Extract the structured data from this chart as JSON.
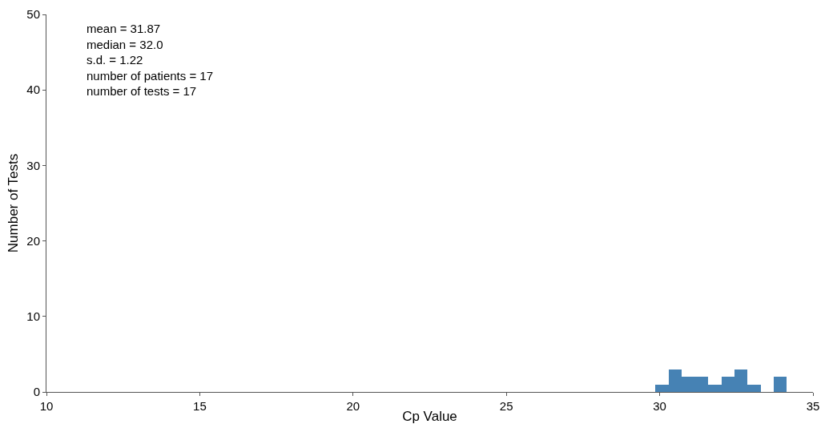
{
  "chart_data": {
    "type": "histogram",
    "xlabel": "Cp Value",
    "ylabel": "Number of Tests",
    "bins": [
      29.86,
      30.29,
      30.72,
      31.15,
      31.58,
      32.01,
      32.43,
      32.86,
      33.29,
      33.72,
      34.15
    ],
    "values": [
      1,
      3,
      2,
      2,
      1,
      2,
      3,
      1,
      0,
      2
    ],
    "color": "#4682b4",
    "xlim": [
      10,
      35
    ],
    "xticks": [
      10,
      15,
      20,
      25,
      30,
      35
    ],
    "ylim": [
      0,
      50
    ],
    "yticks": [
      0,
      10,
      20,
      30,
      40,
      50
    ],
    "grid": false,
    "legend": false,
    "annotations": [
      "mean = 31.87",
      "median = 32.0",
      "s.d. = 1.22",
      "number of patients = 17",
      "number of tests = 17"
    ]
  }
}
